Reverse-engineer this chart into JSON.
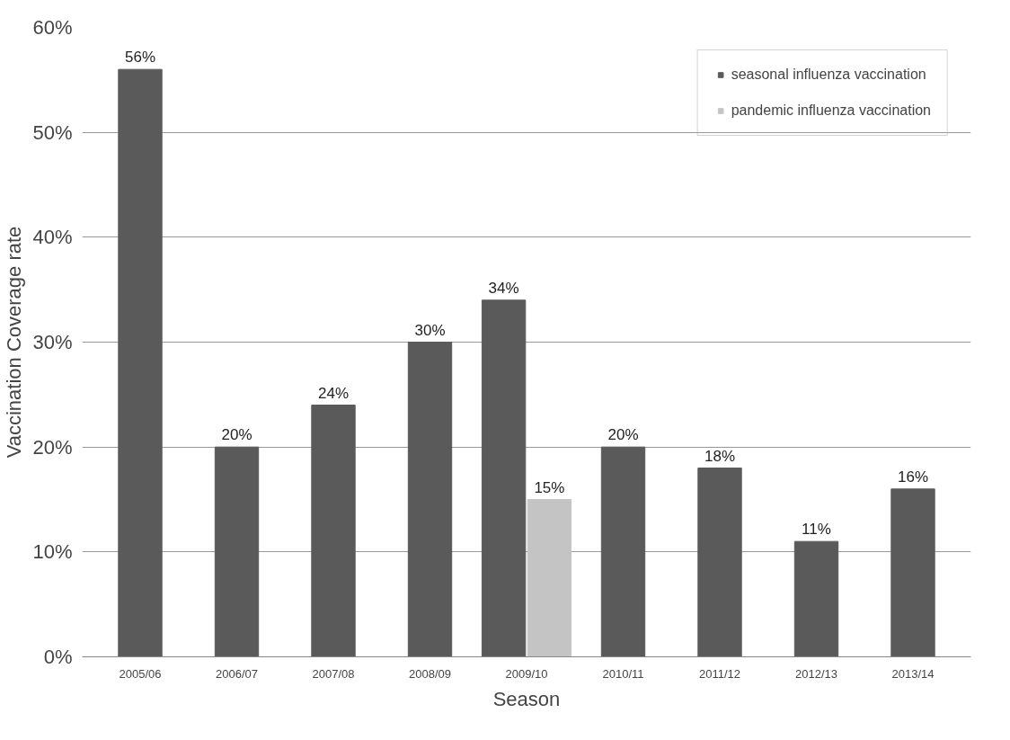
{
  "chart_data": {
    "type": "bar",
    "xlabel": "Season",
    "ylabel": "Vaccination Coverage rate",
    "categories": [
      "2005/06",
      "2006/07",
      "2007/08",
      "2008/09",
      "2009/10",
      "2010/11",
      "2011/12",
      "2012/13",
      "2013/14"
    ],
    "series": [
      {
        "name": "seasonal influenza vaccination",
        "color": "#5a5a5a",
        "values": [
          56,
          20,
          24,
          30,
          34,
          20,
          18,
          11,
          16
        ],
        "value_labels": [
          "56%",
          "20%",
          "24%",
          "30%",
          "34%",
          "20%",
          "18%",
          "11%",
          "16%"
        ]
      },
      {
        "name": "pandemic influenza vaccination",
        "color": "#c4c4c4",
        "values": [
          null,
          null,
          null,
          null,
          15,
          null,
          null,
          null,
          null
        ],
        "value_labels": [
          null,
          null,
          null,
          null,
          "15%",
          null,
          null,
          null,
          null
        ]
      }
    ],
    "ylim": [
      0,
      60
    ],
    "yticks": [
      {
        "value": 0,
        "label": "0%"
      },
      {
        "value": 10,
        "label": "10%"
      },
      {
        "value": 20,
        "label": "20%"
      },
      {
        "value": 30,
        "label": "30%"
      },
      {
        "value": 40,
        "label": "40%"
      },
      {
        "value": 50,
        "label": "50%"
      },
      {
        "value": 60,
        "label": "60%"
      }
    ],
    "grid": "y",
    "legend": "top right",
    "marker": "square"
  }
}
